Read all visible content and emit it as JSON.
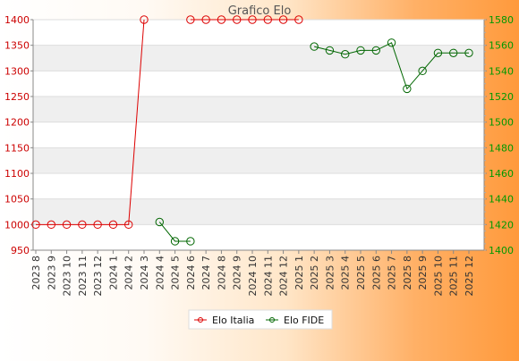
{
  "chart_data": {
    "type": "line",
    "title": "Grafico Elo",
    "categories": [
      "2023 8",
      "2023 9",
      "2023 10",
      "2023 11",
      "2023 12",
      "2024 1",
      "2024 2",
      "2024 3",
      "2024 4",
      "2024 5",
      "2024 6",
      "2024 7",
      "2024 8",
      "2024 9",
      "2024 10",
      "2024 11",
      "2024 12",
      "2025 1",
      "2025 2",
      "2025 3",
      "2025 4",
      "2025 5",
      "2025 6",
      "2025 7",
      "2025 8",
      "2025 9",
      "2025 10",
      "2025 11",
      "2025 12"
    ],
    "y_left": {
      "ylim": [
        950,
        1400
      ],
      "ticks": [
        950,
        1000,
        1050,
        1100,
        1150,
        1200,
        1250,
        1300,
        1350,
        1400
      ],
      "color": "#cc0000"
    },
    "y_right": {
      "ylim": [
        1400,
        1580
      ],
      "ticks": [
        1400,
        1420,
        1440,
        1460,
        1480,
        1500,
        1520,
        1540,
        1560,
        1580
      ],
      "color": "#009900"
    },
    "series": [
      {
        "name": "Elo Italia",
        "axis": "left",
        "color": "#dd0000",
        "values": [
          1000,
          1000,
          1000,
          1000,
          1000,
          1000,
          1000,
          1400,
          null,
          null,
          1400,
          1400,
          1400,
          1400,
          1400,
          1400,
          1400,
          1400,
          null,
          null,
          null,
          null,
          null,
          null,
          null,
          null,
          null,
          null,
          null
        ]
      },
      {
        "name": "Elo FIDE",
        "axis": "right",
        "color": "#006600",
        "values": [
          null,
          null,
          null,
          null,
          null,
          null,
          null,
          null,
          1422,
          1407,
          1407,
          null,
          null,
          null,
          null,
          null,
          null,
          null,
          1559,
          1556,
          1553,
          1556,
          1556,
          1562,
          1526,
          1540,
          1554,
          1554,
          1554
        ]
      }
    ],
    "legend": {
      "position": "bottom-center"
    },
    "grid": true
  }
}
